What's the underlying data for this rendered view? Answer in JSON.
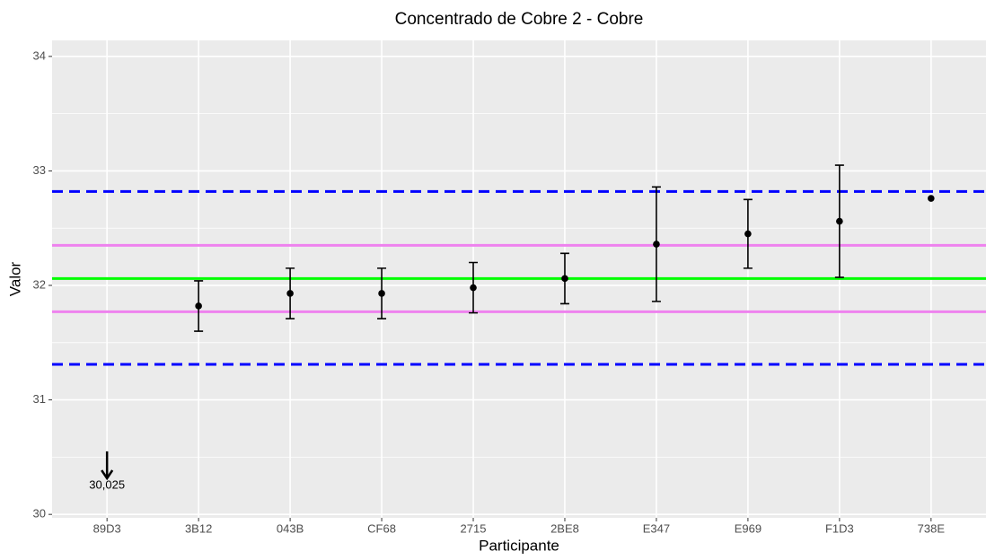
{
  "chart_data": {
    "type": "errorbar",
    "title": "Concentrado de Cobre 2 - Cobre",
    "xlabel": "Participante",
    "ylabel": "Valor",
    "categories": [
      "89D3",
      "3B12",
      "043B",
      "CF68",
      "2715",
      "2BE8",
      "E347",
      "E969",
      "F1D3",
      "738E"
    ],
    "values": [
      30.025,
      31.82,
      31.93,
      31.93,
      31.98,
      32.06,
      32.36,
      32.45,
      32.56,
      32.76
    ],
    "value_labels": [
      "30,025",
      null,
      null,
      null,
      null,
      null,
      null,
      null,
      null,
      null
    ],
    "errors": [
      null,
      0.22,
      0.22,
      0.22,
      0.22,
      0.22,
      0.5,
      0.3,
      0.49,
      null
    ],
    "color": "#000000",
    "reference_lines": [
      {
        "value": 32.82,
        "color": "#0000ff",
        "dashed": true
      },
      {
        "value": 31.31,
        "color": "#0000ff",
        "dashed": true
      },
      {
        "value": 32.35,
        "color": "#ee82ee",
        "dashed": false
      },
      {
        "value": 31.77,
        "color": "#ee82ee",
        "dashed": false
      },
      {
        "value": 32.06,
        "color": "#00ff00",
        "dashed": false
      }
    ],
    "ylim": [
      29.97,
      34.14
    ],
    "yticks": [
      30,
      31,
      32,
      33,
      34
    ],
    "minor_yticks": [
      30.5,
      31.5,
      32.5,
      33.5
    ],
    "grid": true
  }
}
